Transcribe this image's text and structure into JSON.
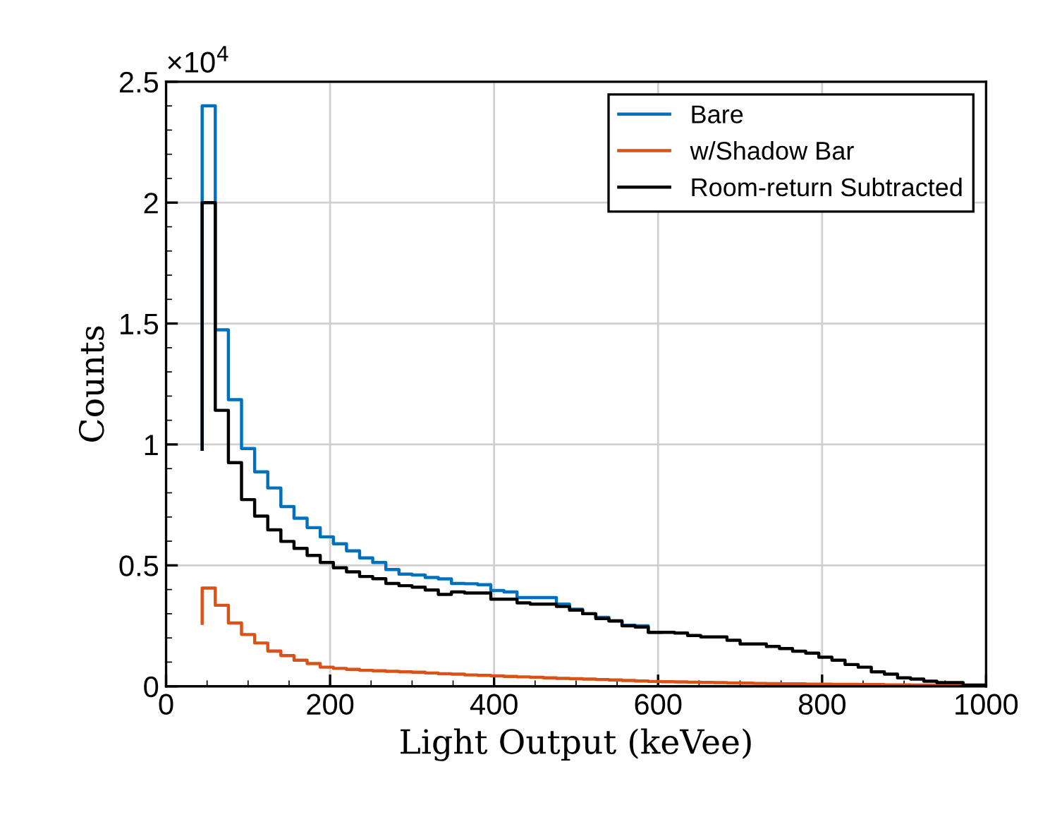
{
  "chart_data": {
    "type": "step",
    "xlabel": "Light Output (keVee)",
    "ylabel": "Counts",
    "annotations": [
      "×10$^{4}$"
    ],
    "xlim": [
      0,
      1000
    ],
    "xticks": [
      0,
      200,
      400,
      600,
      800,
      1000
    ],
    "ylim": [
      0,
      2.5
    ],
    "yticks": [
      0,
      0.5,
      1,
      1.5,
      2,
      2.5
    ],
    "grid": true,
    "legend": "top right",
    "x": [
      44,
      60,
      76,
      92,
      108,
      124,
      140,
      156,
      172,
      188,
      204,
      220,
      236,
      252,
      268,
      284,
      300,
      316,
      332,
      348,
      364,
      380,
      396,
      412,
      428,
      444,
      460,
      476,
      492,
      508,
      524,
      540,
      556,
      572,
      588,
      604,
      620,
      636,
      652,
      668,
      684,
      700,
      716,
      732,
      748,
      764,
      780,
      796,
      812,
      828,
      844,
      860,
      876,
      892,
      908,
      924,
      940,
      956,
      972,
      988,
      1000
    ],
    "series": [
      {
        "name": "Bare",
        "color": "#0072bd",
        "values": [
          0.98,
          2.4,
          1.474,
          1.185,
          0.983,
          0.887,
          0.82,
          0.743,
          0.695,
          0.656,
          0.618,
          0.589,
          0.56,
          0.531,
          0.512,
          0.483,
          0.464,
          0.46,
          0.45,
          0.444,
          0.425,
          0.424,
          0.42,
          0.396,
          0.39,
          0.367,
          0.367,
          0.367,
          0.34,
          0.319,
          0.3,
          0.285,
          0.271,
          0.252,
          0.25,
          0.223,
          null,
          null,
          null,
          null,
          null,
          null,
          null,
          null,
          null,
          null,
          null,
          null,
          null,
          null,
          null,
          null,
          null,
          null,
          null,
          null,
          null,
          null,
          null,
          null,
          null
        ]
      },
      {
        "name": "w/Shadow Bar",
        "color": "#d95319",
        "values": [
          0.26,
          0.406,
          0.335,
          0.262,
          0.214,
          0.179,
          0.146,
          0.127,
          0.108,
          0.094,
          0.079,
          0.074,
          0.07,
          0.066,
          0.064,
          0.062,
          0.06,
          0.058,
          0.055,
          0.052,
          0.05,
          0.047,
          0.045,
          0.043,
          0.041,
          0.039,
          0.037,
          0.035,
          0.033,
          0.031,
          0.03,
          0.028,
          0.026,
          0.024,
          0.022,
          0.02,
          0.019,
          0.018,
          0.017,
          0.016,
          0.015,
          0.014,
          0.013,
          0.012,
          0.011,
          0.01,
          0.01,
          0.009,
          0.009,
          0.008,
          0.008,
          0.007,
          0.007,
          0.006,
          0.006,
          0.005,
          0.005,
          0.004,
          0.004,
          0.003,
          0.003
        ]
      },
      {
        "name": "Room-return Subtracted",
        "color": "#000000",
        "values": [
          0.98,
          2.0,
          1.141,
          0.925,
          0.772,
          0.704,
          0.647,
          0.599,
          0.57,
          0.541,
          0.512,
          0.49,
          0.473,
          0.454,
          0.445,
          0.425,
          0.416,
          0.41,
          0.398,
          0.38,
          0.39,
          0.386,
          0.386,
          0.36,
          0.36,
          0.345,
          0.34,
          0.34,
          0.33,
          0.315,
          0.3,
          0.28,
          0.27,
          0.25,
          0.245,
          0.223,
          0.223,
          0.22,
          0.21,
          0.204,
          0.204,
          0.19,
          0.175,
          0.175,
          0.165,
          0.156,
          0.145,
          0.137,
          0.12,
          0.108,
          0.09,
          0.079,
          0.06,
          0.05,
          0.035,
          0.03,
          0.021,
          0.015,
          0.015,
          0.005,
          0.005
        ]
      }
    ]
  }
}
